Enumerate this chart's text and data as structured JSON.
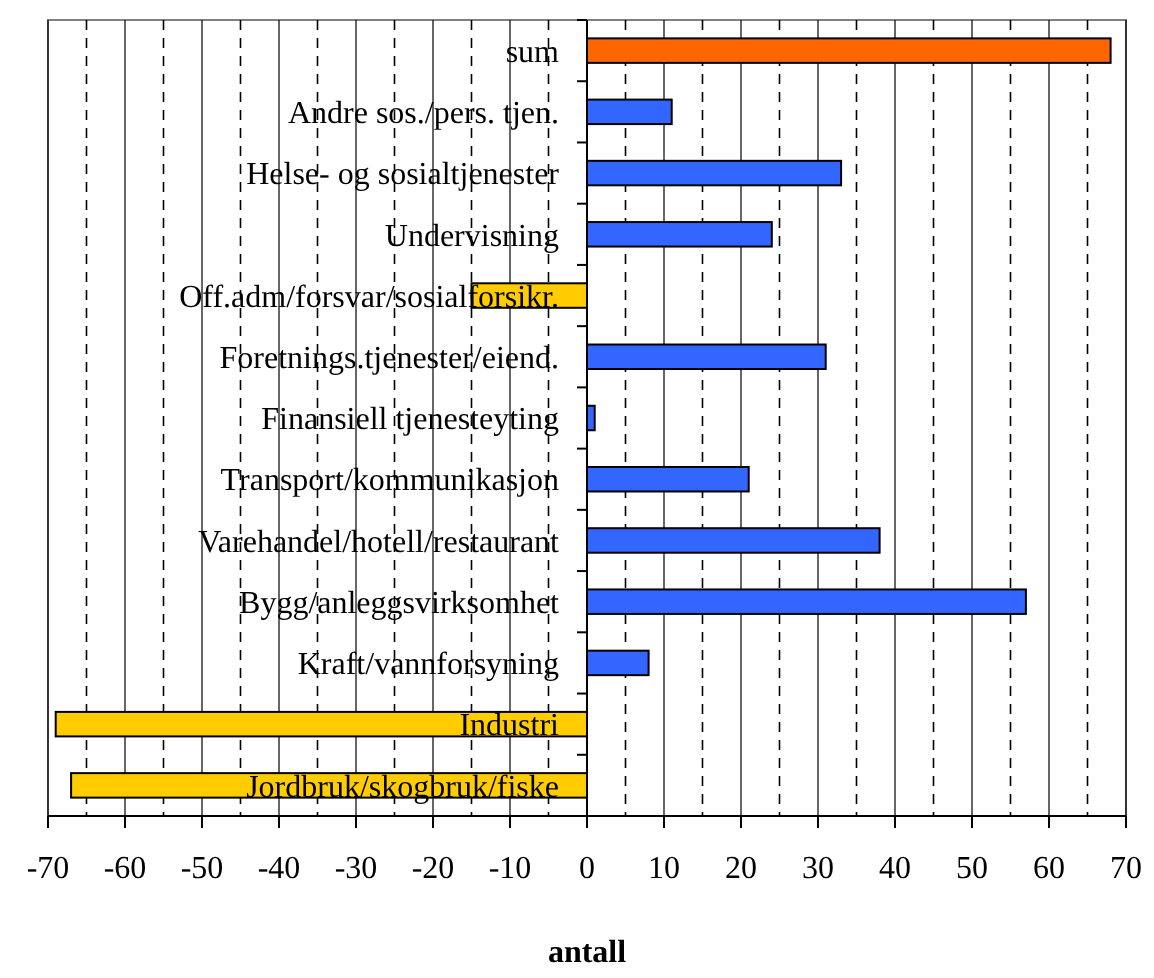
{
  "chart_data": {
    "type": "bar",
    "orientation": "horizontal",
    "xlabel": "antall",
    "categories": [
      "sum",
      "Andre sos./pers. tjen.",
      "Helse- og sosialtjenester",
      "Undervisning",
      "Off.adm/forsvar/sosialforsikr.",
      "Foretnings.tjenester/eiend.",
      "Finansiell tjenesteyting",
      "Transport/kommunikasjon",
      "Varehandel/hotell/restaurant",
      "Bygg/anleggsvirksomhet",
      "Kraft/vannforsyning",
      "Industri",
      "Jordbruk/skogbruk/fiske"
    ],
    "values": [
      68,
      11,
      33,
      24,
      -15,
      31,
      1,
      21,
      38,
      57,
      8,
      -69,
      -67
    ],
    "colors": [
      "#ff6600",
      "#3366ff",
      "#3366ff",
      "#3366ff",
      "#ffcc00",
      "#3366ff",
      "#3366ff",
      "#3366ff",
      "#3366ff",
      "#3366ff",
      "#3366ff",
      "#ffcc00",
      "#ffcc00"
    ],
    "xlim": [
      -70,
      70
    ],
    "xticks": [
      -70,
      -60,
      -50,
      -40,
      -30,
      -20,
      -10,
      0,
      10,
      20,
      30,
      40,
      50,
      60,
      70
    ],
    "grid": "x"
  }
}
